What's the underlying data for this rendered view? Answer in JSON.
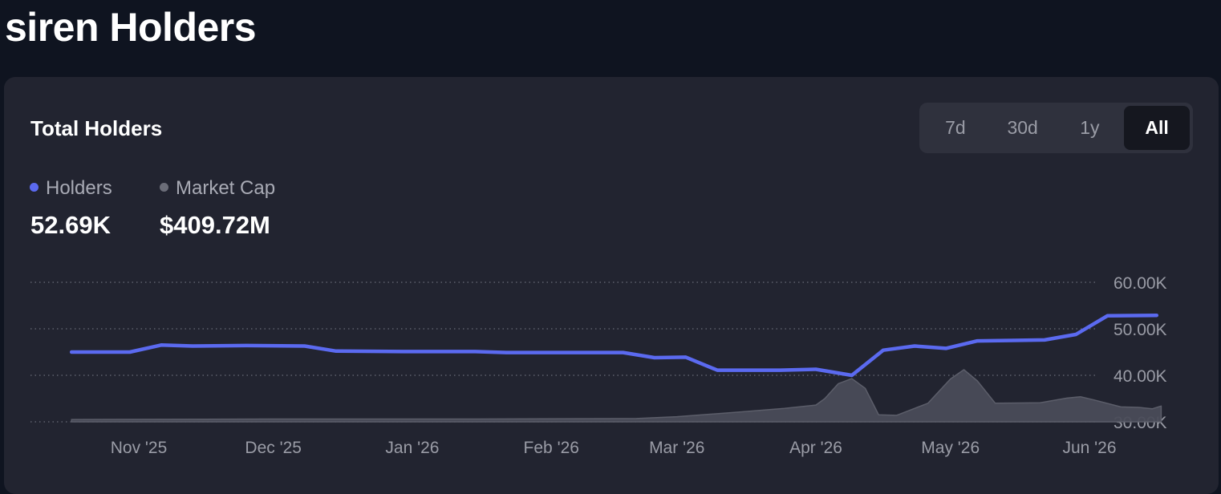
{
  "page": {
    "title": "siren Holders"
  },
  "card": {
    "title": "Total Holders",
    "ranges": [
      "7d",
      "30d",
      "1y",
      "All"
    ],
    "active_range": "All"
  },
  "legend": [
    {
      "name": "Holders",
      "value": "52.69K",
      "color": "#5b6af0"
    },
    {
      "name": "Market Cap",
      "value": "$409.72M",
      "color": "#6b6d78"
    }
  ],
  "chart_data": {
    "type": "line",
    "x_ticks": [
      "Nov '25",
      "Dec '25",
      "Jan '26",
      "Feb '26",
      "Mar '26",
      "Apr '26",
      "May '26",
      "Jun '26"
    ],
    "y_ticks": [
      "30.00K",
      "40.00K",
      "50.00K",
      "60.00K"
    ],
    "ylim": [
      30000,
      60000
    ],
    "grid": true,
    "series": [
      {
        "name": "Holders",
        "color": "#5b6af0",
        "values": [
          [
            "2025-10-17",
            45000
          ],
          [
            "2025-10-30",
            45000
          ],
          [
            "2025-11-06",
            46500
          ],
          [
            "2025-11-13",
            46300
          ],
          [
            "2025-11-25",
            46400
          ],
          [
            "2025-12-08",
            46300
          ],
          [
            "2025-12-15",
            45200
          ],
          [
            "2025-12-30",
            45100
          ],
          [
            "2026-01-15",
            45100
          ],
          [
            "2026-01-22",
            44900
          ],
          [
            "2026-02-05",
            44900
          ],
          [
            "2026-02-17",
            44900
          ],
          [
            "2026-02-24",
            43800
          ],
          [
            "2026-03-03",
            43900
          ],
          [
            "2026-03-10",
            41100
          ],
          [
            "2026-03-24",
            41100
          ],
          [
            "2026-04-01",
            41300
          ],
          [
            "2026-04-09",
            40000
          ],
          [
            "2026-04-16",
            45400
          ],
          [
            "2026-04-23",
            46300
          ],
          [
            "2026-04-30",
            45800
          ],
          [
            "2026-05-07",
            47400
          ],
          [
            "2026-05-22",
            47600
          ],
          [
            "2026-05-29",
            48800
          ],
          [
            "2026-06-05",
            52800
          ],
          [
            "2026-06-16",
            52900
          ]
        ]
      },
      {
        "name": "Market Cap",
        "color": "#6b6d78",
        "values": [
          [
            "2025-10-17",
            30500
          ],
          [
            "2025-12-01",
            30600
          ],
          [
            "2026-01-15",
            30600
          ],
          [
            "2026-02-20",
            30700
          ],
          [
            "2026-03-01",
            31100
          ],
          [
            "2026-03-15",
            32100
          ],
          [
            "2026-03-25",
            32900
          ],
          [
            "2026-04-01",
            33600
          ],
          [
            "2026-04-03",
            35000
          ],
          [
            "2026-04-06",
            38200
          ],
          [
            "2026-04-09",
            39300
          ],
          [
            "2026-04-12",
            37200
          ],
          [
            "2026-04-15",
            31500
          ],
          [
            "2026-04-19",
            31400
          ],
          [
            "2026-04-26",
            34000
          ],
          [
            "2026-05-01",
            39200
          ],
          [
            "2026-05-04",
            41200
          ],
          [
            "2026-05-07",
            38800
          ],
          [
            "2026-05-11",
            34000
          ],
          [
            "2026-05-21",
            34100
          ],
          [
            "2026-05-27",
            35100
          ],
          [
            "2026-05-30",
            35400
          ],
          [
            "2026-06-02",
            34700
          ],
          [
            "2026-06-08",
            33200
          ],
          [
            "2026-06-12",
            33100
          ],
          [
            "2026-06-15",
            32800
          ],
          [
            "2026-06-17",
            33400
          ]
        ]
      }
    ]
  }
}
